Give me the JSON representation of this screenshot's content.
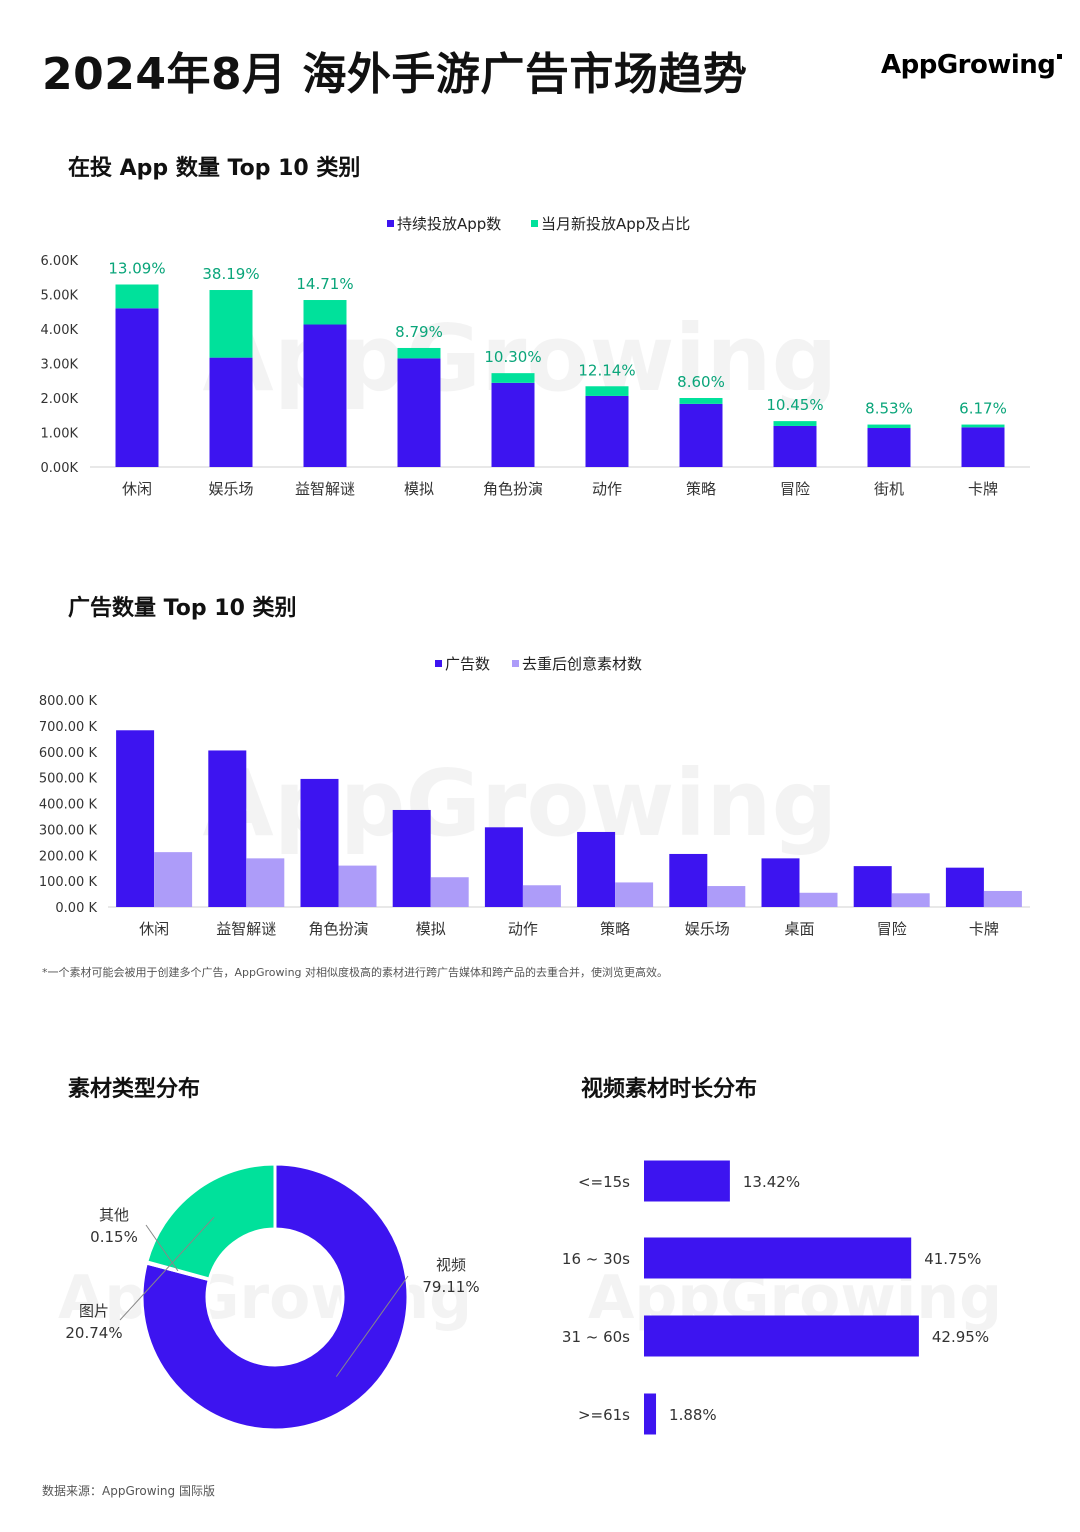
{
  "header": {
    "title": "2024年8月 海外手游广告市场趋势",
    "logo_text": "AppGrowing"
  },
  "colors": {
    "primary": "#3d14f0",
    "green": "#00e19b",
    "lavender": "#ad9cf9",
    "green_label": "#0aa57a"
  },
  "watermark": "AppGrowing",
  "footnote": "*一个素材可能会被用于创建多个广告，AppGrowing 对相似度极高的素材进行跨广告媒体和跨产品的去重合并，使浏览更高效。",
  "source": "数据来源：AppGrowing 国际版",
  "chart_data": [
    {
      "title": "在投 App 数量 Top 10 类别",
      "type": "bar",
      "stacked": true,
      "categories": [
        "休闲",
        "娱乐场",
        "益智解谜",
        "模拟",
        "角色扮演",
        "动作",
        "策略",
        "冒险",
        "街机",
        "卡牌"
      ],
      "series": [
        {
          "name": "持续投放App数",
          "values": [
            4600,
            3170,
            4130,
            3150,
            2440,
            2060,
            1830,
            1190,
            1130,
            1150
          ]
        },
        {
          "name": "当月新投放App及占比",
          "values": [
            690,
            1960,
            710,
            300,
            280,
            280,
            170,
            140,
            100,
            80
          ]
        }
      ],
      "data_labels": [
        "13.09%",
        "38.19%",
        "14.71%",
        "8.79%",
        "10.30%",
        "12.14%",
        "8.60%",
        "10.45%",
        "8.53%",
        "6.17%"
      ],
      "y_ticks": [
        "0.00K",
        "1.00K",
        "2.00K",
        "3.00K",
        "4.00K",
        "5.00K",
        "6.00K"
      ],
      "ylim": [
        0,
        6000
      ],
      "legend_position": "top-center",
      "grid": false
    },
    {
      "title": "广告数量 Top 10 类别",
      "type": "bar",
      "categories": [
        "休闲",
        "益智解谜",
        "角色扮演",
        "模拟",
        "动作",
        "策略",
        "娱乐场",
        "桌面",
        "冒险",
        "卡牌"
      ],
      "series": [
        {
          "name": "广告数",
          "values": [
            683000,
            605000,
            495000,
            375000,
            308000,
            290000,
            205000,
            188000,
            158000,
            152000
          ]
        },
        {
          "name": "去重后创意素材数",
          "values": [
            212000,
            188000,
            160000,
            115000,
            84000,
            95000,
            81000,
            55000,
            53000,
            62000
          ]
        }
      ],
      "y_ticks": [
        "0.00 K",
        "100.00 K",
        "200.00 K",
        "300.00 K",
        "400.00 K",
        "500.00 K",
        "600.00 K",
        "700.00 K",
        "800.00 K"
      ],
      "ylim": [
        0,
        800000
      ],
      "legend_position": "top-center",
      "grid": false
    },
    {
      "title": "素材类型分布",
      "type": "pie",
      "donut": true,
      "slices": [
        {
          "label": "视频",
          "value": 79.11,
          "text": "79.11%"
        },
        {
          "label": "其他",
          "value": 0.15,
          "text": "0.15%"
        },
        {
          "label": "图片",
          "value": 20.74,
          "text": "20.74%"
        }
      ]
    },
    {
      "title": "视频素材时长分布",
      "type": "bar",
      "orientation": "horizontal",
      "categories": [
        "<=15s",
        "16 ~ 30s",
        "31 ~ 60s",
        ">=61s"
      ],
      "values": [
        13.42,
        41.75,
        42.95,
        1.88
      ],
      "data_labels": [
        "13.42%",
        "41.75%",
        "42.95%",
        "1.88%"
      ]
    }
  ]
}
